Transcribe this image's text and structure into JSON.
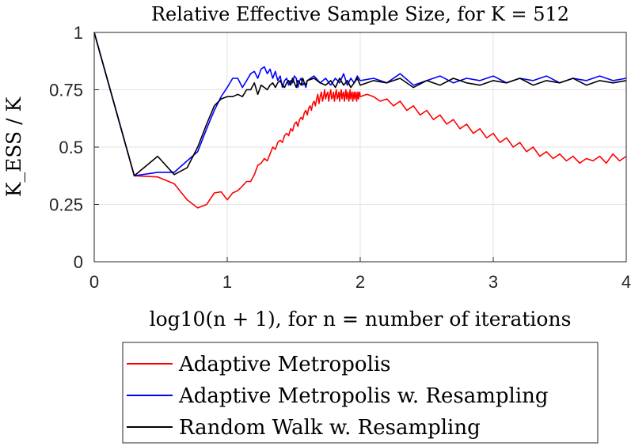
{
  "chart_data": {
    "type": "line",
    "title": "Relative Effective Sample Size, for K = 512",
    "xlabel": "log10(n + 1), for n = number of iterations",
    "ylabel": "K_ESS / K",
    "xlim": [
      0,
      4
    ],
    "ylim": [
      0,
      1
    ],
    "x_ticks": [
      0,
      1,
      2,
      3,
      4
    ],
    "x_tick_labels": [
      "0",
      "1",
      "2",
      "3",
      "4"
    ],
    "y_ticks": [
      0,
      0.25,
      0.5,
      0.75,
      1
    ],
    "y_tick_labels": [
      "0",
      "0.25",
      "0.5",
      "0.75",
      "1"
    ],
    "grid": true,
    "legend_position": "below",
    "series": [
      {
        "name": "Adaptive Metropolis",
        "color": "#ff0000",
        "x": [
          0,
          0.301,
          0.477,
          0.602,
          0.699,
          0.778,
          0.845,
          0.903,
          0.954,
          1.0,
          1.041,
          1.079,
          1.114,
          1.146,
          1.176,
          1.204,
          1.23,
          1.255,
          1.279,
          1.301,
          1.322,
          1.342,
          1.362,
          1.38,
          1.398,
          1.415,
          1.431,
          1.447,
          1.462,
          1.477,
          1.491,
          1.505,
          1.519,
          1.531,
          1.544,
          1.556,
          1.568,
          1.58,
          1.591,
          1.602,
          1.613,
          1.623,
          1.633,
          1.643,
          1.653,
          1.663,
          1.672,
          1.681,
          1.69,
          1.699,
          1.708,
          1.716,
          1.724,
          1.732,
          1.74,
          1.748,
          1.756,
          1.763,
          1.771,
          1.778,
          1.785,
          1.792,
          1.799,
          1.806,
          1.813,
          1.82,
          1.826,
          1.833,
          1.839,
          1.845,
          1.851,
          1.857,
          1.863,
          1.869,
          1.875,
          1.881,
          1.886,
          1.892,
          1.898,
          1.903,
          1.908,
          1.914,
          1.919,
          1.924,
          1.929,
          1.934,
          1.94,
          1.944,
          1.949,
          1.954,
          1.959,
          1.964,
          1.968,
          1.973,
          1.978,
          1.982,
          1.987,
          1.991,
          1.996,
          2.0,
          2.05,
          2.1,
          2.15,
          2.2,
          2.25,
          2.3,
          2.35,
          2.4,
          2.45,
          2.5,
          2.55,
          2.6,
          2.65,
          2.7,
          2.75,
          2.8,
          2.85,
          2.9,
          2.95,
          3.0,
          3.05,
          3.1,
          3.15,
          3.2,
          3.25,
          3.3,
          3.35,
          3.4,
          3.45,
          3.5,
          3.55,
          3.6,
          3.65,
          3.7,
          3.75,
          3.8,
          3.85,
          3.9,
          3.95,
          4.0
        ],
        "values": [
          1.0,
          0.375,
          0.37,
          0.34,
          0.27,
          0.235,
          0.25,
          0.3,
          0.305,
          0.27,
          0.3,
          0.31,
          0.33,
          0.35,
          0.35,
          0.38,
          0.42,
          0.43,
          0.45,
          0.44,
          0.47,
          0.5,
          0.49,
          0.52,
          0.53,
          0.52,
          0.55,
          0.56,
          0.55,
          0.58,
          0.57,
          0.6,
          0.61,
          0.59,
          0.62,
          0.63,
          0.62,
          0.65,
          0.66,
          0.64,
          0.67,
          0.68,
          0.66,
          0.69,
          0.7,
          0.68,
          0.71,
          0.73,
          0.69,
          0.72,
          0.74,
          0.7,
          0.72,
          0.75,
          0.71,
          0.73,
          0.74,
          0.7,
          0.73,
          0.75,
          0.71,
          0.72,
          0.74,
          0.7,
          0.73,
          0.75,
          0.71,
          0.72,
          0.74,
          0.7,
          0.73,
          0.75,
          0.71,
          0.73,
          0.74,
          0.7,
          0.72,
          0.75,
          0.71,
          0.73,
          0.74,
          0.7,
          0.72,
          0.75,
          0.71,
          0.73,
          0.74,
          0.7,
          0.72,
          0.74,
          0.71,
          0.73,
          0.74,
          0.7,
          0.72,
          0.74,
          0.71,
          0.73,
          0.74,
          0.72,
          0.73,
          0.72,
          0.7,
          0.71,
          0.68,
          0.7,
          0.66,
          0.68,
          0.64,
          0.66,
          0.62,
          0.64,
          0.6,
          0.62,
          0.58,
          0.6,
          0.56,
          0.58,
          0.54,
          0.56,
          0.52,
          0.54,
          0.5,
          0.52,
          0.48,
          0.5,
          0.46,
          0.48,
          0.45,
          0.47,
          0.44,
          0.46,
          0.43,
          0.45,
          0.44,
          0.46,
          0.43,
          0.47,
          0.44,
          0.46
        ]
      },
      {
        "name": "Adaptive Metropolis w. Resampling",
        "color": "#0000ff",
        "x": [
          0,
          0.301,
          0.477,
          0.602,
          0.699,
          0.778,
          0.845,
          0.903,
          0.954,
          1.0,
          1.041,
          1.079,
          1.114,
          1.146,
          1.176,
          1.204,
          1.23,
          1.255,
          1.279,
          1.301,
          1.322,
          1.342,
          1.362,
          1.38,
          1.398,
          1.415,
          1.431,
          1.447,
          1.462,
          1.477,
          1.491,
          1.505,
          1.519,
          1.531,
          1.544,
          1.556,
          1.568,
          1.58,
          1.591,
          1.602,
          1.653,
          1.699,
          1.74,
          1.778,
          1.813,
          1.845,
          1.875,
          1.903,
          1.929,
          1.954,
          1.978,
          2.0,
          2.1,
          2.2,
          2.3,
          2.4,
          2.5,
          2.6,
          2.7,
          2.8,
          2.9,
          3.0,
          3.1,
          3.2,
          3.3,
          3.4,
          3.5,
          3.6,
          3.7,
          3.8,
          3.9,
          4.0
        ],
        "values": [
          1.0,
          0.375,
          0.39,
          0.39,
          0.44,
          0.48,
          0.58,
          0.66,
          0.72,
          0.76,
          0.8,
          0.8,
          0.76,
          0.79,
          0.82,
          0.83,
          0.8,
          0.84,
          0.85,
          0.82,
          0.84,
          0.8,
          0.83,
          0.79,
          0.81,
          0.76,
          0.79,
          0.8,
          0.77,
          0.79,
          0.78,
          0.81,
          0.8,
          0.76,
          0.79,
          0.8,
          0.77,
          0.78,
          0.76,
          0.79,
          0.81,
          0.78,
          0.8,
          0.77,
          0.8,
          0.78,
          0.82,
          0.77,
          0.8,
          0.78,
          0.81,
          0.79,
          0.8,
          0.78,
          0.82,
          0.77,
          0.79,
          0.81,
          0.78,
          0.8,
          0.79,
          0.81,
          0.78,
          0.8,
          0.79,
          0.81,
          0.78,
          0.8,
          0.79,
          0.81,
          0.79,
          0.8
        ]
      },
      {
        "name": "Random Walk w. Resampling",
        "color": "#000000",
        "x": [
          0,
          0.301,
          0.477,
          0.602,
          0.699,
          0.778,
          0.845,
          0.903,
          0.954,
          1.0,
          1.041,
          1.079,
          1.114,
          1.146,
          1.176,
          1.204,
          1.23,
          1.255,
          1.279,
          1.301,
          1.322,
          1.342,
          1.362,
          1.38,
          1.398,
          1.415,
          1.431,
          1.447,
          1.462,
          1.477,
          1.491,
          1.505,
          1.519,
          1.531,
          1.544,
          1.556,
          1.568,
          1.58,
          1.591,
          1.602,
          1.653,
          1.699,
          1.74,
          1.778,
          1.813,
          1.845,
          1.875,
          1.903,
          1.929,
          1.954,
          1.978,
          2.0,
          2.1,
          2.2,
          2.3,
          2.4,
          2.5,
          2.6,
          2.7,
          2.8,
          2.9,
          3.0,
          3.1,
          3.2,
          3.3,
          3.4,
          3.5,
          3.6,
          3.7,
          3.8,
          3.9,
          4.0
        ],
        "values": [
          1.0,
          0.375,
          0.46,
          0.38,
          0.41,
          0.5,
          0.6,
          0.68,
          0.71,
          0.72,
          0.72,
          0.73,
          0.72,
          0.75,
          0.75,
          0.78,
          0.73,
          0.77,
          0.76,
          0.75,
          0.77,
          0.78,
          0.76,
          0.78,
          0.79,
          0.77,
          0.76,
          0.78,
          0.79,
          0.77,
          0.8,
          0.78,
          0.76,
          0.79,
          0.78,
          0.77,
          0.8,
          0.78,
          0.77,
          0.79,
          0.8,
          0.78,
          0.77,
          0.79,
          0.76,
          0.8,
          0.77,
          0.79,
          0.76,
          0.78,
          0.8,
          0.77,
          0.79,
          0.78,
          0.8,
          0.76,
          0.79,
          0.77,
          0.8,
          0.78,
          0.77,
          0.79,
          0.78,
          0.8,
          0.77,
          0.79,
          0.78,
          0.8,
          0.77,
          0.79,
          0.78,
          0.79
        ]
      }
    ]
  }
}
